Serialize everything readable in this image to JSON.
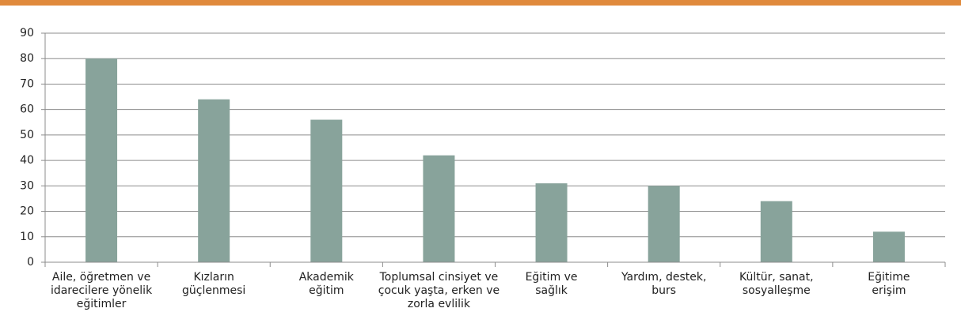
{
  "chart_data": {
    "type": "bar",
    "categories": [
      [
        "Aile, öğretmen ve",
        "idarecilere yönelik",
        "eğitimler"
      ],
      [
        "Kızların",
        "güçlenmesi"
      ],
      [
        "Akademik",
        "eğitim"
      ],
      [
        "Toplumsal cinsiyet ve",
        "çocuk yaşta, erken ve",
        "zorla evlilik"
      ],
      [
        "Eğitim ve",
        "sağlık"
      ],
      [
        "Yardım, destek,",
        "burs"
      ],
      [
        "Kültür, sanat,",
        "sosyalleşme"
      ],
      [
        "Eğitime",
        "erişim"
      ]
    ],
    "values": [
      80,
      64,
      56,
      42,
      31,
      30,
      24,
      12
    ],
    "color": "#88a39b",
    "ylim": [
      0,
      90
    ],
    "yticks": [
      0,
      10,
      20,
      30,
      40,
      50,
      60,
      70,
      80,
      90
    ],
    "grid": true
  }
}
